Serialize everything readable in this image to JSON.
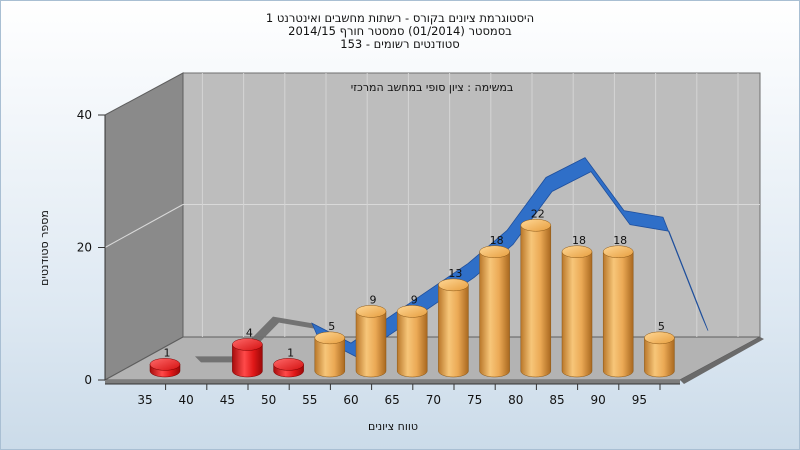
{
  "header": {
    "title_line1": "היסטוגרמת ציונים בקורס - רשתות מחשבים ואינטרנט 1",
    "title_line2": "בסמסטר  (01/2014)  סמסטר חורף 2014/15",
    "title_line3": "סטודנטים רשומים - 153"
  },
  "chart_data": {
    "type": "bar",
    "subtitle": "במשימה : ציון סופי במחשב המרכזי",
    "xlabel": "טווח ציונים",
    "ylabel": "מספר סטודנטים",
    "ylim": [
      0,
      40
    ],
    "y_ticks": [
      "0",
      "20",
      "40"
    ],
    "categories": [
      "35",
      "40",
      "45",
      "50",
      "55",
      "60",
      "65",
      "70",
      "75",
      "80",
      "85",
      "90",
      "95"
    ],
    "values": [
      1,
      null,
      4,
      1,
      5,
      9,
      9,
      13,
      18,
      22,
      18,
      18,
      5
    ],
    "data_labels": [
      "1",
      "",
      "4",
      "1",
      "5",
      "9",
      "9",
      "13",
      "18",
      "22",
      "18",
      "18",
      "5"
    ],
    "bar_colors": [
      "red",
      null,
      "red",
      "red",
      "gold",
      "gold",
      "gold",
      "gold",
      "gold",
      "gold",
      "gold",
      "gold",
      "gold"
    ],
    "colors": {
      "fail": "#e01818",
      "pass": "#e8a640",
      "curve": "#2f6fc8",
      "curve_grey": "#6f6f6f",
      "wall": "#bcbcbc",
      "side_wall": "#8a8a8a"
    },
    "grid": true,
    "legend": "none",
    "style": "3d-cylinder-bars-with-distribution-ribbon"
  }
}
